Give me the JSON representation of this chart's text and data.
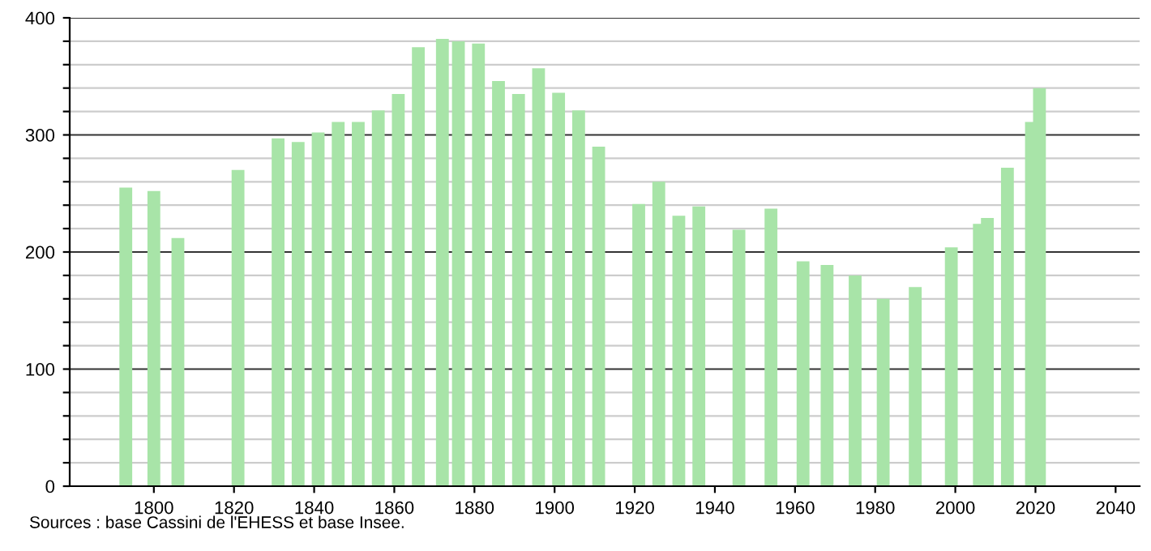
{
  "chart_data": {
    "type": "bar",
    "x": [
      1793,
      1800,
      1806,
      1821,
      1831,
      1836,
      1841,
      1846,
      1851,
      1856,
      1861,
      1866,
      1872,
      1876,
      1881,
      1886,
      1891,
      1896,
      1901,
      1906,
      1911,
      1921,
      1926,
      1931,
      1936,
      1946,
      1954,
      1962,
      1968,
      1975,
      1982,
      1990,
      1999,
      2006,
      2008,
      2013,
      2019,
      2021
    ],
    "values": [
      255,
      252,
      212,
      270,
      297,
      294,
      302,
      311,
      311,
      321,
      335,
      375,
      382,
      380,
      378,
      346,
      335,
      357,
      336,
      321,
      290,
      241,
      260,
      231,
      239,
      219,
      237,
      192,
      189,
      180,
      160,
      170,
      204,
      224,
      229,
      272,
      311,
      340
    ],
    "color": "#a8e4a8",
    "xlim": [
      1779,
      2046
    ],
    "xticks": [
      1800,
      1820,
      1840,
      1860,
      1880,
      1900,
      1920,
      1940,
      1960,
      1980,
      2000,
      2020,
      2040
    ],
    "ylim": [
      0,
      400
    ],
    "yticks": [
      0,
      {
        "value": 20,
        "label": null
      },
      {
        "value": 40,
        "label": null
      },
      {
        "value": 60,
        "label": null
      },
      {
        "value": 80,
        "label": null
      },
      100,
      {
        "value": 120,
        "label": null
      },
      {
        "value": 140,
        "label": null
      },
      {
        "value": 160,
        "label": null
      },
      {
        "value": 180,
        "label": null
      },
      200,
      {
        "value": 220,
        "label": null
      },
      {
        "value": 240,
        "label": null
      },
      {
        "value": 260,
        "label": null
      },
      {
        "value": 280,
        "label": null
      },
      300,
      {
        "value": 320,
        "label": null
      },
      {
        "value": 340,
        "label": null
      },
      {
        "value": 360,
        "label": null
      },
      {
        "value": 380,
        "label": null
      },
      400
    ],
    "grid": "y",
    "annotations": [
      "Sources : base Cassini de l'EHESS et base Insee."
    ]
  }
}
